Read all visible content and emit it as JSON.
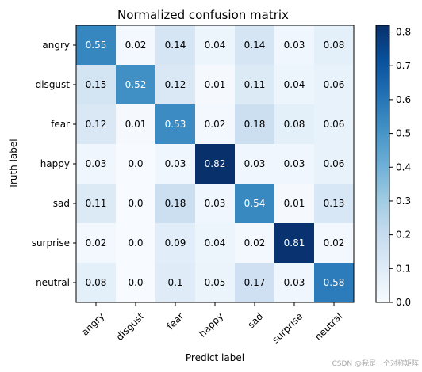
{
  "chart_data": {
    "type": "heatmap",
    "title": "Normalized confusion matrix",
    "xlabel": "Predict label",
    "ylabel": "Truth label",
    "x_categories": [
      "angry",
      "disgust",
      "fear",
      "happy",
      "sad",
      "surprise",
      "neutral"
    ],
    "y_categories": [
      "angry",
      "disgust",
      "fear",
      "happy",
      "sad",
      "surprise",
      "neutral"
    ],
    "values": [
      [
        0.55,
        0.02,
        0.14,
        0.04,
        0.14,
        0.03,
        0.08
      ],
      [
        0.15,
        0.52,
        0.12,
        0.01,
        0.11,
        0.04,
        0.06
      ],
      [
        0.12,
        0.01,
        0.53,
        0.02,
        0.18,
        0.08,
        0.06
      ],
      [
        0.03,
        0.0,
        0.03,
        0.82,
        0.03,
        0.03,
        0.06
      ],
      [
        0.11,
        0.0,
        0.18,
        0.03,
        0.54,
        0.01,
        0.13
      ],
      [
        0.02,
        0.0,
        0.09,
        0.04,
        0.02,
        0.81,
        0.02
      ],
      [
        0.08,
        0.0,
        0.1,
        0.05,
        0.17,
        0.03,
        0.58
      ]
    ],
    "cell_labels": [
      [
        "0.55",
        "0.02",
        "0.14",
        "0.04",
        "0.14",
        "0.03",
        "0.08"
      ],
      [
        "0.15",
        "0.52",
        "0.12",
        "0.01",
        "0.11",
        "0.04",
        "0.06"
      ],
      [
        "0.12",
        "0.01",
        "0.53",
        "0.02",
        "0.18",
        "0.08",
        "0.06"
      ],
      [
        "0.03",
        "0.0",
        "0.03",
        "0.82",
        "0.03",
        "0.03",
        "0.06"
      ],
      [
        "0.11",
        "0.0",
        "0.18",
        "0.03",
        "0.54",
        "0.01",
        "0.13"
      ],
      [
        "0.02",
        "0.0",
        "0.09",
        "0.04",
        "0.02",
        "0.81",
        "0.02"
      ],
      [
        "0.08",
        "0.0",
        "0.1",
        "0.05",
        "0.17",
        "0.03",
        "0.58"
      ]
    ],
    "colormap": "Blues",
    "color_range": [
      0.0,
      0.82
    ],
    "colorbar_ticks": [
      "0.0",
      "0.1",
      "0.2",
      "0.3",
      "0.4",
      "0.5",
      "0.6",
      "0.7",
      "0.8"
    ],
    "xtick_rotation": "45 degrees",
    "grid": false
  },
  "watermark": "CSDN @我是一个对称矩阵"
}
